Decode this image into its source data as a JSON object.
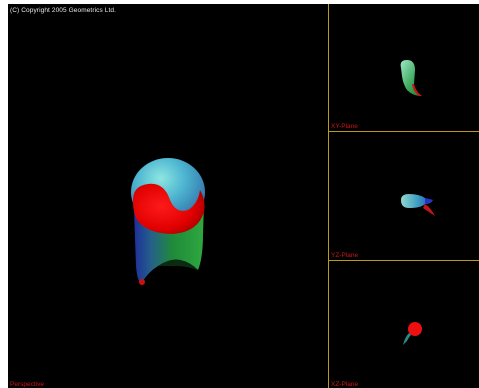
{
  "copyright": "(C) Copyright 2005 Geometrics Ltd.",
  "viewports": {
    "perspective": {
      "label": "Perspective"
    },
    "xy": {
      "label": "XY-Plane"
    },
    "yz": {
      "label": "YZ-Plane"
    },
    "xz": {
      "label": "XZ-Plane"
    }
  },
  "colors": {
    "background": "#000000",
    "divider": "#b89a1c",
    "label_text": "#c81818",
    "copyright_text": "#e8e8e8"
  }
}
